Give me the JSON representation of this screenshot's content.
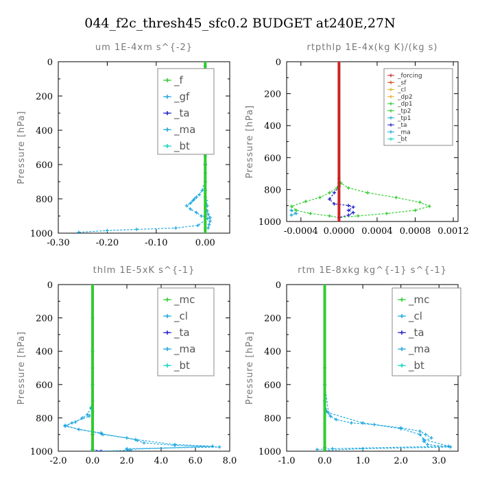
{
  "figure_title": "044_f2c_thresh45_sfc0.2  BUDGET at240E,27N",
  "chart_data": [
    {
      "type": "line",
      "title": "um   1E-4xm s^{-2}",
      "ylabel": "Pressure [hPa]",
      "xlim": [
        -0.3,
        0.05
      ],
      "ylim": [
        1000,
        0
      ],
      "xticks": [
        "-0.30",
        "-0.20",
        "-0.10",
        "0.00"
      ],
      "xtick_values": [
        -0.3,
        -0.2,
        -0.1,
        0.0
      ],
      "yticks": [
        "0",
        "200",
        "400",
        "600",
        "800",
        "1000"
      ],
      "ytick_values": [
        0,
        200,
        400,
        600,
        800,
        1000
      ],
      "legend_style": "large",
      "legend": [
        "_f",
        "_gf",
        "_ta",
        "_ma",
        "_bt"
      ],
      "series": [
        {
          "name": "_bt",
          "color": "#1fa8e0",
          "x": [
            0.0,
            0.0,
            0.0,
            0.0,
            0.0,
            0.0,
            0.0,
            0.0,
            0.0,
            0.0,
            0.0,
            0.0,
            0.0,
            0.0,
            0.0,
            0.0,
            0.0,
            0.0,
            0.0,
            0.0,
            0.0,
            -0.002,
            -0.006,
            -0.012,
            -0.018,
            -0.022,
            -0.025,
            -0.03,
            -0.038,
            -0.03,
            -0.018,
            -0.008,
            0.005,
            -0.015,
            -0.06,
            -0.14,
            -0.2,
            -0.258
          ],
          "y": [
            0,
            25,
            50,
            75,
            100,
            125,
            150,
            175,
            200,
            225,
            250,
            275,
            300,
            350,
            400,
            450,
            500,
            550,
            600,
            650,
            700,
            725,
            750,
            775,
            790,
            800,
            810,
            825,
            840,
            860,
            880,
            900,
            915,
            955,
            970,
            978,
            985,
            995
          ]
        },
        {
          "name": "_gf",
          "color": "#1fa8e0",
          "x": [
            0.0,
            0.0,
            0.0,
            0.0,
            0.0,
            0.0,
            0.0,
            0.002,
            0.004,
            0.004,
            0.006,
            0.01,
            0.01,
            0.008,
            0.006
          ],
          "y": [
            0,
            200,
            400,
            600,
            700,
            750,
            790,
            810,
            840,
            870,
            890,
            910,
            930,
            950,
            970
          ]
        },
        {
          "name": "_ta",
          "color": "#2222cc",
          "x": [
            0.0,
            0.0,
            0.0,
            0.0,
            0.0
          ],
          "y": [
            0,
            300,
            600,
            900,
            1000
          ]
        },
        {
          "name": "_f",
          "color": "#2ecc2e",
          "x": [
            0.0,
            0.0
          ],
          "y": [
            0,
            1000
          ]
        }
      ]
    },
    {
      "type": "line",
      "title": "rtpthlp   1E-4x(kg K)/(kg s)",
      "ylabel": "Pressure [hPa]",
      "xlim": [
        -0.00055,
        0.00125
      ],
      "ylim": [
        1000,
        0
      ],
      "xticks": [
        "-0.0004",
        "0.0000",
        "0.0004",
        "0.0008",
        "0.0012"
      ],
      "xtick_values": [
        -0.0004,
        0.0,
        0.0004,
        0.0008,
        0.0012
      ],
      "yticks": [
        "0",
        "200",
        "400",
        "600",
        "800",
        "1000"
      ],
      "ytick_values": [
        0,
        200,
        400,
        600,
        800,
        1000
      ],
      "legend_style": "small",
      "legend": [
        "_forcing",
        "_sf",
        "_cl",
        "_dp2",
        "_dp1",
        "_tp2",
        "_tp1",
        "_ta",
        "_ma",
        "_bt"
      ],
      "series": [
        {
          "name": "_tp2",
          "color": "#2ecc2e",
          "x": [
            0.0,
            0.0,
            2e-05,
            0.0001,
            0.0003,
            0.0006,
            0.00085,
            0.00095,
            0.0008,
            0.0005,
            0.0002,
            0.0
          ],
          "y": [
            0,
            730,
            760,
            790,
            820,
            850,
            880,
            905,
            930,
            950,
            965,
            975
          ]
        },
        {
          "name": "_dp1",
          "color": "#2ecc2e",
          "x": [
            0.0,
            -2e-05,
            -0.0001,
            -0.0002,
            -0.00035,
            -0.0005,
            -0.00045,
            -0.0003,
            -0.0001,
            0.0
          ],
          "y": [
            760,
            790,
            820,
            850,
            875,
            905,
            930,
            950,
            965,
            975
          ]
        },
        {
          "name": "_ta",
          "color": "#2222cc",
          "x": [
            0.0,
            -5e-05,
            -0.0001,
            -5e-05,
            0.0001,
            0.00015,
            0.0001,
            0.00015,
            0.0001,
            0.0
          ],
          "y": [
            780,
            820,
            860,
            890,
            900,
            910,
            930,
            945,
            960,
            975
          ]
        },
        {
          "name": "_bt",
          "color": "#1fa8e0",
          "x": [
            -0.0005,
            -0.00045,
            -0.0005
          ],
          "y": [
            930,
            950,
            960
          ]
        },
        {
          "name": "_forcing",
          "color": "#cc2222",
          "x": [
            0.0,
            0.0
          ],
          "y": [
            0,
            1000
          ]
        }
      ]
    },
    {
      "type": "line",
      "title": "thlm   1E-5xK s^{-1}",
      "ylabel": "Pressure [hPa]",
      "xlim": [
        -2.0,
        8.0
      ],
      "ylim": [
        1000,
        0
      ],
      "xticks": [
        "-2.0",
        "0.0",
        "2.0",
        "4.0",
        "6.0",
        "8.0"
      ],
      "xtick_values": [
        -2.0,
        0.0,
        2.0,
        4.0,
        6.0,
        8.0
      ],
      "yticks": [
        "0",
        "200",
        "400",
        "600",
        "800",
        "1000"
      ],
      "ytick_values": [
        0,
        200,
        400,
        600,
        800,
        1000
      ],
      "legend_style": "large",
      "legend": [
        "_mc",
        "_cl",
        "_ta",
        "_ma",
        "_bt"
      ],
      "series": [
        {
          "name": "_cl",
          "color": "#1fa8e0",
          "x": [
            0.0,
            0.0,
            0.0,
            0.0,
            0.0,
            -0.1,
            -0.3,
            -0.6,
            -1.0,
            -1.6,
            -0.8,
            0.5,
            0.6,
            2.0,
            2.6,
            3.0,
            4.8,
            7.4,
            2.0,
            2.2,
            0.0
          ],
          "y": [
            0,
            200,
            400,
            600,
            700,
            740,
            780,
            800,
            825,
            845,
            870,
            890,
            900,
            920,
            935,
            950,
            965,
            975,
            985,
            995,
            1000
          ]
        },
        {
          "name": "_bt",
          "color": "#1fa8e0",
          "x": [
            0.0,
            0.0,
            0.0,
            -0.2,
            -1.2,
            -1.6,
            0.5,
            2.5,
            4.8,
            7.0,
            2.0
          ],
          "y": [
            0,
            500,
            760,
            790,
            830,
            850,
            895,
            930,
            960,
            970,
            990
          ]
        },
        {
          "name": "_ta",
          "color": "#2222cc",
          "x": [
            0.0,
            0.0,
            0.0,
            0.5
          ],
          "y": [
            0,
            900,
            990,
            1000
          ]
        },
        {
          "name": "_mc",
          "color": "#2ecc2e",
          "x": [
            0.0,
            0.0
          ],
          "y": [
            0,
            1000
          ]
        }
      ]
    },
    {
      "type": "line",
      "title": "rtm   1E-8xkg kg^{-1} s^{-1}",
      "ylabel": "Pressure [hPa]",
      "xlim": [
        -1.0,
        3.5
      ],
      "ylim": [
        1000,
        0
      ],
      "xticks": [
        "-1.0",
        "0.0",
        "1.0",
        "2.0",
        "3.0"
      ],
      "xtick_values": [
        -1.0,
        0.0,
        1.0,
        2.0,
        3.0
      ],
      "yticks": [
        "0",
        "200",
        "400",
        "600",
        "800",
        "1000"
      ],
      "ytick_values": [
        0,
        200,
        400,
        600,
        800,
        1000
      ],
      "legend_style": "large",
      "legend": [
        "_mc",
        "_cl",
        "_ta",
        "_ma",
        "_bt"
      ],
      "series": [
        {
          "name": "_cl",
          "color": "#1fa8e0",
          "x": [
            0.0,
            0.0,
            0.0,
            0.05,
            0.15,
            0.3,
            0.7,
            1.3,
            2.0,
            2.5,
            2.65,
            2.8,
            2.6,
            2.7,
            3.3,
            1.0,
            0.0
          ],
          "y": [
            0,
            500,
            700,
            760,
            790,
            810,
            830,
            840,
            860,
            880,
            900,
            920,
            940,
            960,
            975,
            985,
            995
          ]
        },
        {
          "name": "_bt",
          "color": "#1fa8e0",
          "x": [
            0.0,
            0.0,
            0.1,
            1.0,
            2.0,
            2.5,
            2.6,
            3.25,
            0.2,
            -0.2
          ],
          "y": [
            0,
            600,
            770,
            830,
            865,
            900,
            930,
            970,
            985,
            990
          ]
        },
        {
          "name": "_ta",
          "color": "#2222cc",
          "x": [
            0.0,
            0.0,
            0.0
          ],
          "y": [
            0,
            980,
            1000
          ]
        },
        {
          "name": "_mc",
          "color": "#2ecc2e",
          "x": [
            0.0,
            0.0
          ],
          "y": [
            0,
            1000
          ]
        }
      ]
    }
  ]
}
